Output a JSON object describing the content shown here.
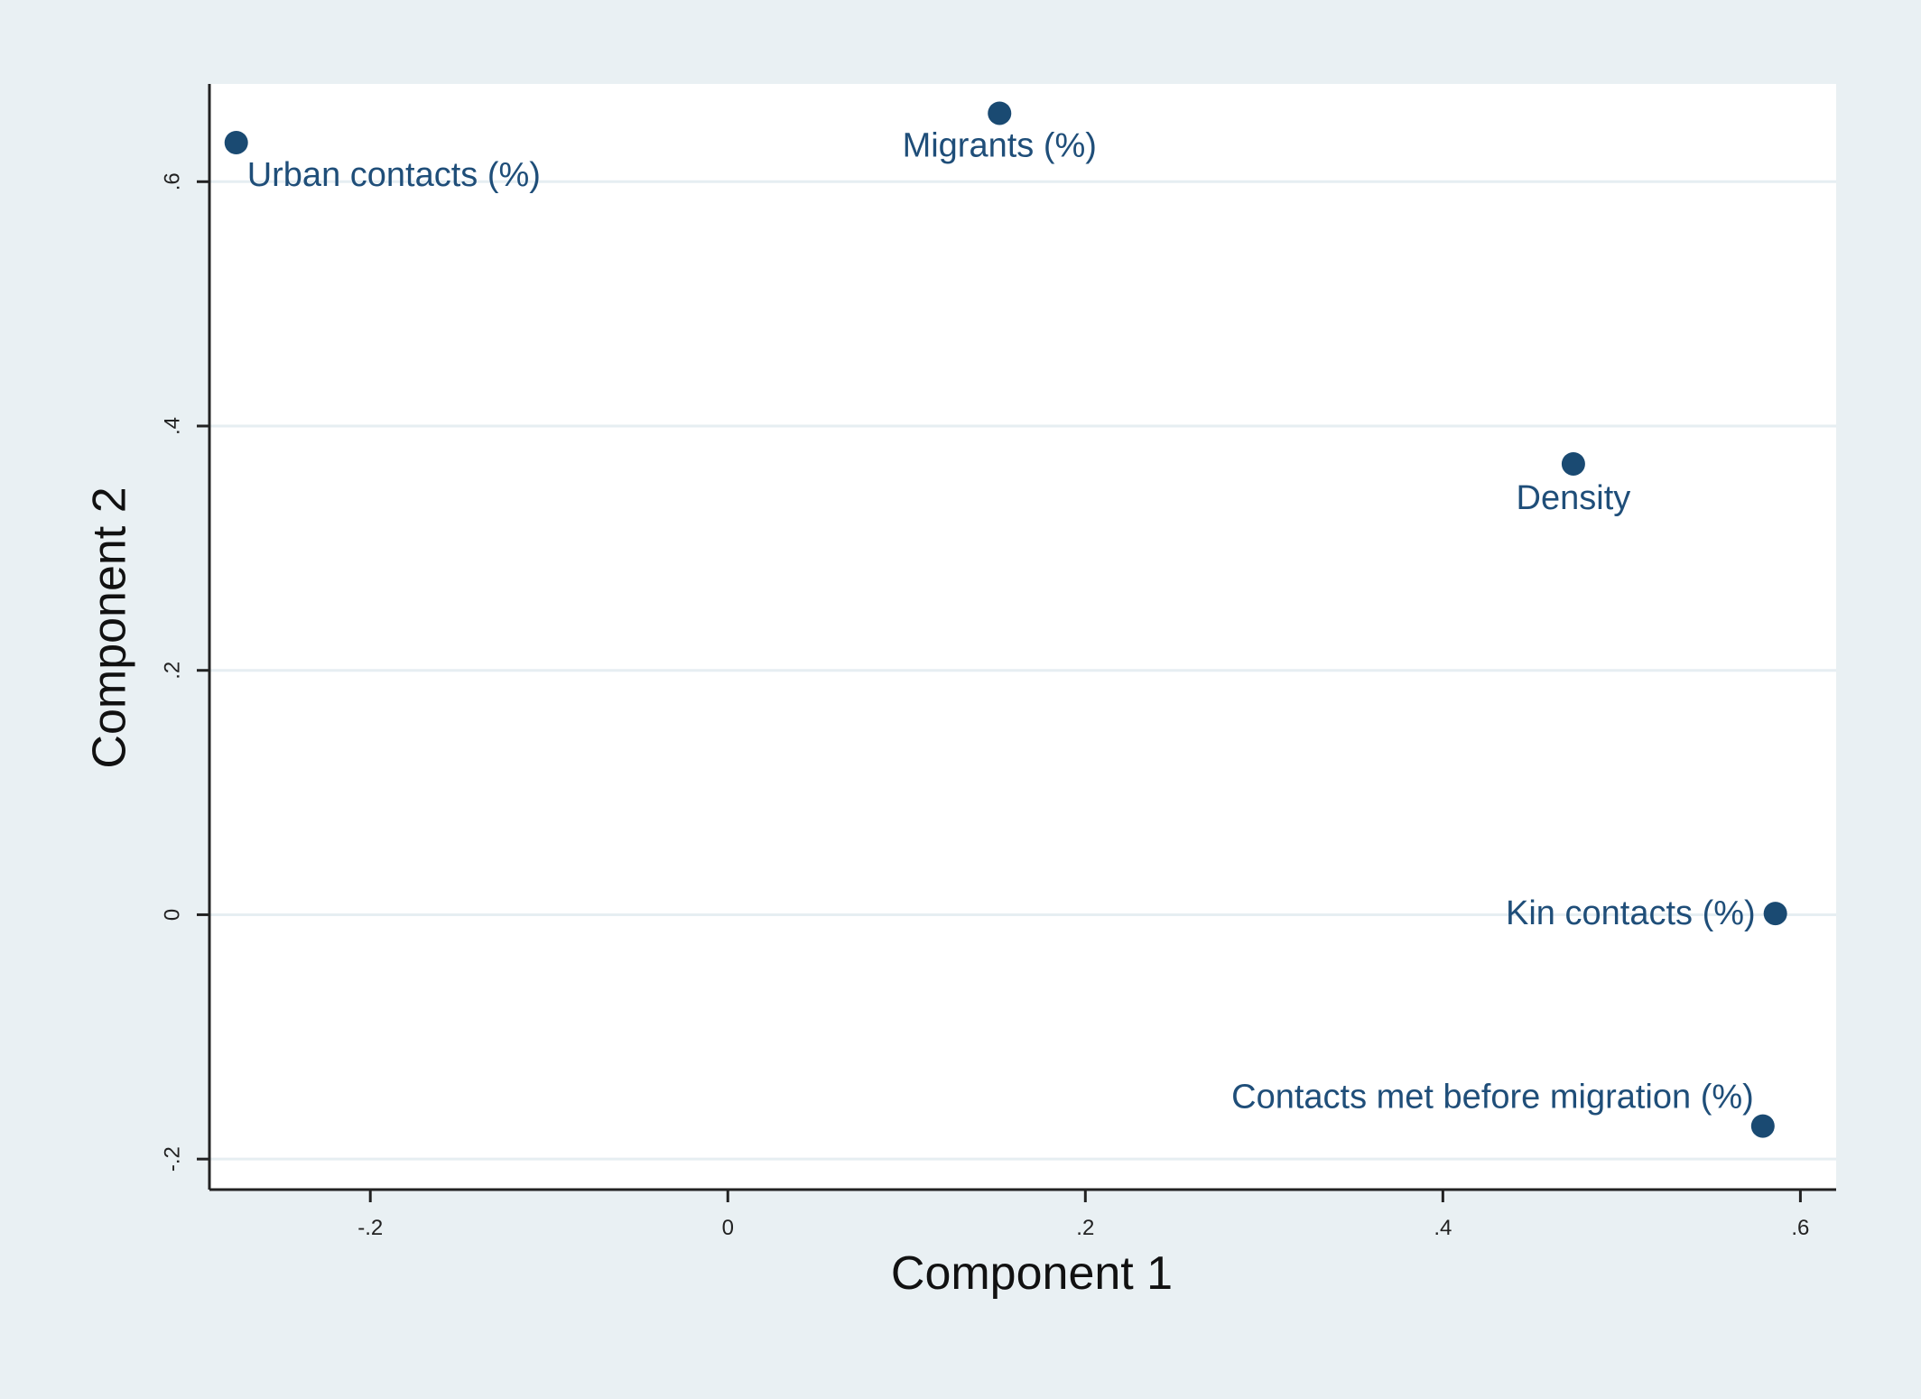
{
  "chart_data": {
    "type": "scatter",
    "xlabel": "Component 1",
    "ylabel": "Component 2",
    "xlim": [
      -0.29,
      0.62
    ],
    "ylim": [
      -0.225,
      0.68
    ],
    "xticks": [
      -0.2,
      0,
      0.2,
      0.4,
      0.6
    ],
    "yticks": [
      -0.2,
      0,
      0.2,
      0.4,
      0.6
    ],
    "xtick_labels": [
      "-.2",
      "0",
      ".2",
      ".4",
      ".6"
    ],
    "ytick_labels": [
      "-.2",
      "0",
      ".2",
      ".4",
      ".6"
    ],
    "grid": "horizontal",
    "points": [
      {
        "label": "Urban contacts (%)",
        "x": -0.275,
        "y": 0.632
      },
      {
        "label": "Migrants (%)",
        "x": 0.152,
        "y": 0.656
      },
      {
        "label": "Density",
        "x": 0.473,
        "y": 0.369
      },
      {
        "label": "Kin contacts (%)",
        "x": 0.586,
        "y": 0.001
      },
      {
        "label": "Contacts met before migration (%)",
        "x": 0.579,
        "y": -0.173
      }
    ],
    "colors": {
      "outer_background": "#e9f0f3",
      "plot_background": "#ffffff",
      "marker": "#1a4a72",
      "label": "#1f4e79",
      "gridline": "#e6eef2",
      "axis": "#222222"
    }
  }
}
